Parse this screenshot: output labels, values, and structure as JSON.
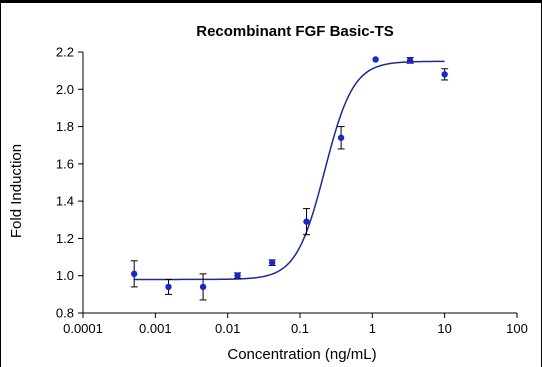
{
  "chart_data": {
    "type": "scatter",
    "title": "Recombinant FGF Basic-TS",
    "xlabel": "Concentration (ng/mL)",
    "ylabel": "Fold Induction",
    "x_scale": "log",
    "xlim": [
      0.0001,
      100
    ],
    "ylim": [
      0.8,
      2.2
    ],
    "x_ticks": [
      {
        "value": 0.0001,
        "label": "0.0001"
      },
      {
        "value": 0.001,
        "label": "0.001"
      },
      {
        "value": 0.01,
        "label": "0.01"
      },
      {
        "value": 0.1,
        "label": "0.1"
      },
      {
        "value": 1,
        "label": "1"
      },
      {
        "value": 10,
        "label": "10"
      },
      {
        "value": 100,
        "label": "100"
      }
    ],
    "y_ticks": [
      {
        "value": 0.8,
        "label": "0.8"
      },
      {
        "value": 1.0,
        "label": "1.0"
      },
      {
        "value": 1.2,
        "label": "1.2"
      },
      {
        "value": 1.4,
        "label": "1.4"
      },
      {
        "value": 1.6,
        "label": "1.6"
      },
      {
        "value": 1.8,
        "label": "1.8"
      },
      {
        "value": 2.0,
        "label": "2.0"
      },
      {
        "value": 2.2,
        "label": "2.2"
      }
    ],
    "grid": false,
    "legend": "none",
    "points": [
      {
        "x": 0.00051,
        "y": 1.01,
        "err": 0.07
      },
      {
        "x": 0.00152,
        "y": 0.94,
        "err": 0.04
      },
      {
        "x": 0.00457,
        "y": 0.94,
        "err": 0.07
      },
      {
        "x": 0.0137,
        "y": 1.0,
        "err": 0.015
      },
      {
        "x": 0.0412,
        "y": 1.07,
        "err": 0.015
      },
      {
        "x": 0.123,
        "y": 1.29,
        "err": 0.07
      },
      {
        "x": 0.37,
        "y": 1.74,
        "err": 0.06
      },
      {
        "x": 1.11,
        "y": 2.16,
        "err": 0.0
      },
      {
        "x": 3.33,
        "y": 2.155,
        "err": 0.015
      },
      {
        "x": 10,
        "y": 2.08,
        "err": 0.03
      }
    ],
    "fit_curve": {
      "model": "4PL",
      "bottom": 0.98,
      "top": 2.15,
      "ec50": 0.22,
      "hill": 2.2
    },
    "colors": {
      "points": "#1428d2",
      "curve": "#1c2b8c",
      "error_bars": "#000000"
    }
  }
}
